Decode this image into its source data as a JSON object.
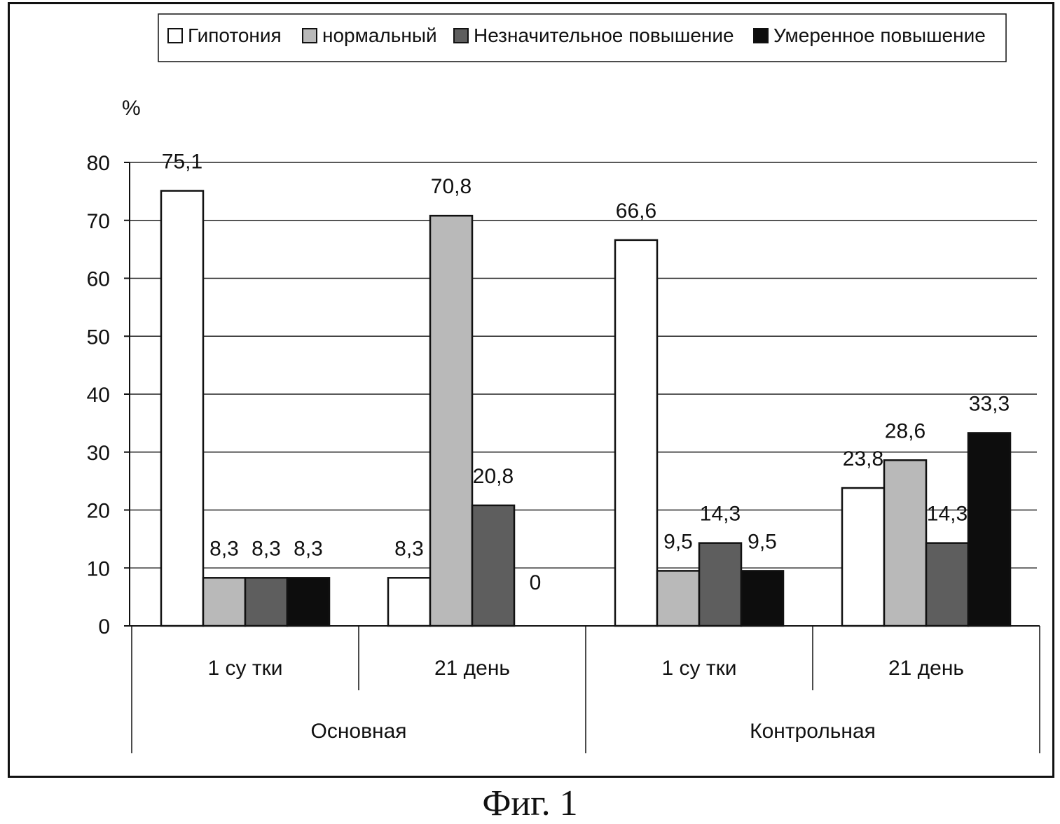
{
  "chart_data": {
    "type": "bar",
    "ylabel": "%",
    "ylim": [
      0,
      80
    ],
    "yticks": [
      0,
      10,
      20,
      30,
      40,
      50,
      60,
      70,
      80
    ],
    "grid": true,
    "legend_position": "top",
    "colors": {
      "Гипотония": "#ffffff",
      "нормальный": "#b9b9b9",
      "Незначительное повышение": "#5e5e5e",
      "Умеренное повышение": "#0d0d0d"
    },
    "groups": [
      {
        "label": "Основная",
        "categories": [
          "1 су тки",
          "21 день"
        ]
      },
      {
        "label": "Контрольная",
        "categories": [
          "1 су тки",
          "21 день"
        ]
      }
    ],
    "series": [
      {
        "name": "Гипотония",
        "values": [
          75.1,
          8.3,
          66.6,
          23.8
        ],
        "labels": [
          "75,1",
          "8,3",
          "66,6",
          "23,8"
        ]
      },
      {
        "name": "нормальный",
        "values": [
          8.3,
          70.8,
          9.5,
          28.6
        ],
        "labels": [
          "8,3",
          "70,8",
          "9,5",
          "28,6"
        ]
      },
      {
        "name": "Незначительное повышение",
        "values": [
          8.3,
          20.8,
          14.3,
          14.3
        ],
        "labels": [
          "8,3",
          "20,8",
          "14,3",
          "14,3"
        ]
      },
      {
        "name": "Умеренное повышение",
        "values": [
          8.3,
          0,
          9.5,
          33.3
        ],
        "labels": [
          "8,3",
          "0",
          "9,5",
          "33,3"
        ]
      }
    ]
  },
  "caption": "Фиг. 1"
}
